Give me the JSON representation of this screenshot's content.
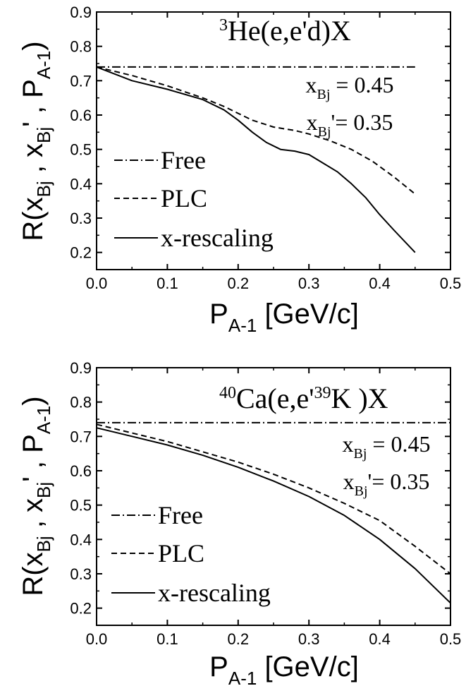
{
  "chart_data": [
    {
      "type": "line",
      "title_parts": {
        "sup": "3",
        "base": "He(e,e'd)X"
      },
      "xlabel_parts": {
        "main": "P",
        "sub": "A-1",
        "unit": " [GeV/c]"
      },
      "ylabel": "R(x_Bj , x_Bj' , P_A-1)",
      "xlim": [
        0,
        0.5
      ],
      "ylim": [
        0.15,
        0.9
      ],
      "xticks": [
        "0.0",
        "0.1",
        "0.2",
        "0.3",
        "0.4",
        "0.5"
      ],
      "yticks": [
        "0.2",
        "0.3",
        "0.4",
        "0.5",
        "0.6",
        "0.7",
        "0.8",
        "0.9"
      ],
      "annotations": [
        {
          "var": "x",
          "sub": "Bj",
          "prime": "",
          "text": " = 0.45"
        },
        {
          "var": "x",
          "sub": "Bj",
          "prime": "'",
          "text": "= 0.35"
        }
      ],
      "legend": [
        "Free",
        "PLC",
        "x-rescaling"
      ],
      "series": [
        {
          "name": "Free",
          "style": "dashdot",
          "x": [
            0.0,
            0.45
          ],
          "y": [
            0.74,
            0.74
          ]
        },
        {
          "name": "PLC",
          "style": "dash",
          "x": [
            0.0,
            0.05,
            0.1,
            0.15,
            0.18,
            0.2,
            0.22,
            0.25,
            0.28,
            0.3,
            0.33,
            0.36,
            0.39,
            0.42,
            0.45
          ],
          "y": [
            0.74,
            0.715,
            0.685,
            0.65,
            0.625,
            0.605,
            0.585,
            0.565,
            0.555,
            0.545,
            0.525,
            0.5,
            0.465,
            0.42,
            0.37
          ]
        },
        {
          "name": "x-rescaling",
          "style": "solid",
          "x": [
            0.0,
            0.05,
            0.1,
            0.15,
            0.18,
            0.2,
            0.22,
            0.24,
            0.26,
            0.28,
            0.3,
            0.32,
            0.34,
            0.36,
            0.38,
            0.4,
            0.42,
            0.45
          ],
          "y": [
            0.74,
            0.7,
            0.675,
            0.645,
            0.615,
            0.585,
            0.55,
            0.52,
            0.5,
            0.495,
            0.485,
            0.46,
            0.435,
            0.4,
            0.36,
            0.31,
            0.265,
            0.2
          ]
        }
      ]
    },
    {
      "type": "line",
      "title_parts": {
        "sup": "40",
        "base": "Ca(e,e'",
        "sup2": "39",
        "base2": "K )X"
      },
      "xlabel_parts": {
        "main": "P",
        "sub": "A-1",
        "unit": " [GeV/c]"
      },
      "ylabel": "R(x_Bj , x_Bj' , P_A-1)",
      "xlim": [
        0,
        0.5
      ],
      "ylim": [
        0.15,
        0.9
      ],
      "xticks": [
        "0.0",
        "0.1",
        "0.2",
        "0.3",
        "0.4",
        "0.5"
      ],
      "yticks": [
        "0.2",
        "0.3",
        "0.4",
        "0.5",
        "0.6",
        "0.7",
        "0.8",
        "0.9"
      ],
      "annotations": [
        {
          "var": "x",
          "sub": "Bj",
          "prime": "",
          "text": " = 0.45"
        },
        {
          "var": "x",
          "sub": "Bj",
          "prime": "'",
          "text": "= 0.35"
        }
      ],
      "legend": [
        "Free",
        "PLC",
        "x-rescaling"
      ],
      "series": [
        {
          "name": "Free",
          "style": "dashdot",
          "x": [
            0.0,
            0.5
          ],
          "y": [
            0.74,
            0.74
          ]
        },
        {
          "name": "PLC",
          "style": "dash",
          "x": [
            0.0,
            0.05,
            0.1,
            0.15,
            0.2,
            0.25,
            0.3,
            0.35,
            0.4,
            0.45,
            0.5
          ],
          "y": [
            0.735,
            0.71,
            0.685,
            0.655,
            0.625,
            0.59,
            0.55,
            0.505,
            0.455,
            0.38,
            0.3
          ]
        },
        {
          "name": "x-rescaling",
          "style": "solid",
          "x": [
            0.0,
            0.05,
            0.1,
            0.15,
            0.2,
            0.25,
            0.3,
            0.35,
            0.4,
            0.45,
            0.5
          ],
          "y": [
            0.725,
            0.7,
            0.675,
            0.645,
            0.61,
            0.57,
            0.525,
            0.47,
            0.4,
            0.315,
            0.215
          ]
        }
      ]
    }
  ]
}
